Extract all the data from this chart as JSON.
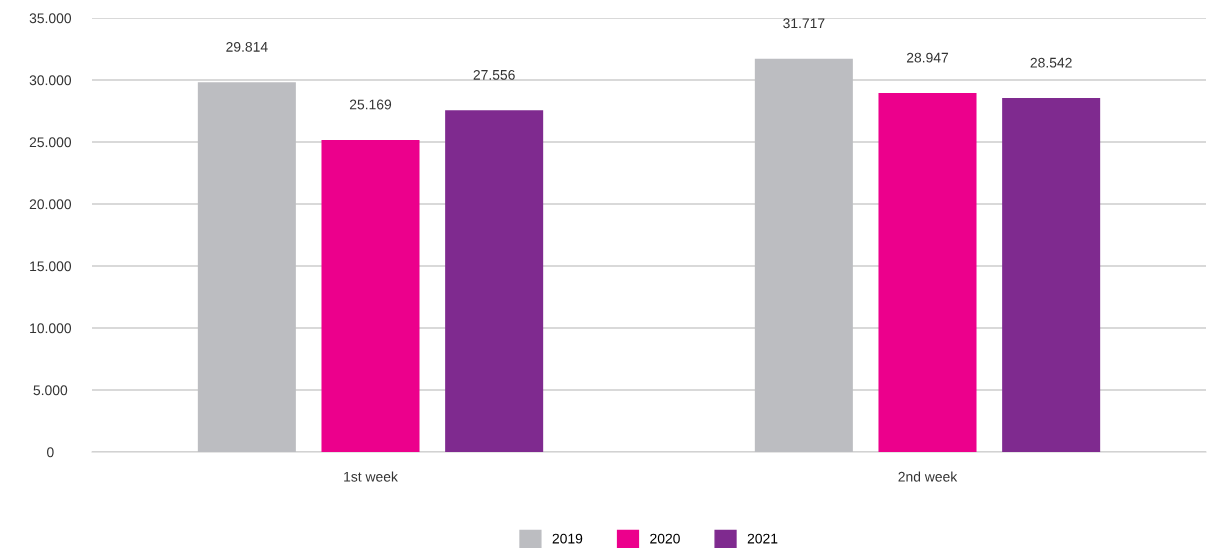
{
  "chart_data": {
    "type": "bar",
    "categories": [
      "1st week",
      "2nd week"
    ],
    "series": [
      {
        "name": "2019",
        "color": "#bcbdc1",
        "values": [
          29814,
          31717
        ],
        "value_labels": [
          "29.814",
          "31.717"
        ]
      },
      {
        "name": "2020",
        "color": "#ec008c",
        "values": [
          25169,
          28947
        ],
        "value_labels": [
          "25.169",
          "28.947"
        ]
      },
      {
        "name": "2021",
        "color": "#7f2a8f",
        "values": [
          27556,
          28542
        ],
        "value_labels": [
          "27.556",
          "28.542"
        ]
      }
    ],
    "ylim": [
      0,
      35000
    ],
    "yticks": [
      0,
      {
        "value": 5000,
        "label": "5.000"
      },
      {
        "value": 10000,
        "label": "10.000"
      },
      {
        "value": 15000,
        "label": "15.000"
      },
      {
        "value": 20000,
        "label": "20.000"
      },
      {
        "value": 25000,
        "label": "25.000"
      },
      {
        "value": 30000,
        "label": "30.000"
      },
      {
        "value": 35000,
        "label": "35.000"
      }
    ],
    "grid": "y",
    "legend": "bottom"
  }
}
